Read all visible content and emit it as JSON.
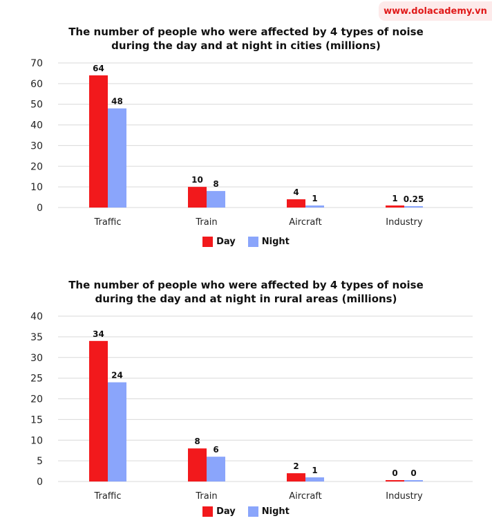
{
  "brand": {
    "text": "www.dolacademy.vn",
    "color": "#e01919"
  },
  "colors": {
    "day": "#f2191c",
    "night": "#8aa5fb",
    "grid": "#d9d9d9"
  },
  "chart_data": [
    {
      "type": "bar",
      "title_lines": [
        "The number of people who were affected by 4 types of noise",
        "during the day and at night in cities (millions)"
      ],
      "categories": [
        "Traffic",
        "Train",
        "Aircraft",
        "Industry"
      ],
      "series": [
        {
          "name": "Day",
          "values": [
            64,
            10,
            4,
            1
          ],
          "labels": [
            "64",
            "10",
            "4",
            "1"
          ]
        },
        {
          "name": "Night",
          "values": [
            48,
            8,
            1,
            0.25
          ],
          "labels": [
            "48",
            "8",
            "1",
            "0.25"
          ]
        }
      ],
      "ylim": [
        0,
        70
      ],
      "yticks": [
        0,
        10,
        20,
        30,
        40,
        50,
        60,
        70
      ],
      "grid": true,
      "legend": "bottom-center"
    },
    {
      "type": "bar",
      "title_lines": [
        "The number of people who were affected by 4 types of noise",
        "during the day and at night in rural areas (millions)"
      ],
      "categories": [
        "Traffic",
        "Train",
        "Aircraft",
        "Industry"
      ],
      "series": [
        {
          "name": "Day",
          "values": [
            34,
            8,
            2,
            0
          ],
          "labels": [
            "34",
            "8",
            "2",
            "0"
          ]
        },
        {
          "name": "Night",
          "values": [
            24,
            6,
            1,
            0
          ],
          "labels": [
            "24",
            "6",
            "1",
            "0"
          ]
        }
      ],
      "ylim": [
        0,
        40
      ],
      "yticks": [
        0,
        5,
        10,
        15,
        20,
        25,
        30,
        35,
        40
      ],
      "grid": true,
      "legend": "bottom-center"
    }
  ]
}
